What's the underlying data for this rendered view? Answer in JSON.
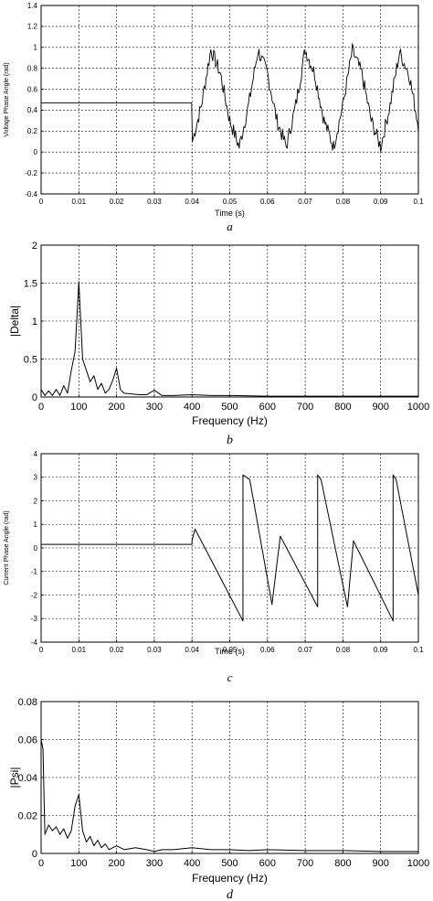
{
  "chart_data": [
    {
      "type": "line",
      "panel_label": "a",
      "xlabel": "Time (s)",
      "ylabel": "Voltage Phase Angle (rad)",
      "xlim": [
        0,
        0.1
      ],
      "ylim": [
        -0.4,
        1.4
      ],
      "grid": true,
      "x_ticks": [
        "0",
        "0.01",
        "0.02",
        "0.03",
        "0.04",
        "0.05",
        "0.06",
        "0.07",
        "0.08",
        "0.09",
        "0.1"
      ],
      "y_ticks": [
        "-0.4",
        "-0.2",
        "0",
        "0.2",
        "0.4",
        "0.6",
        "0.8",
        "1",
        "1.2",
        "1.4"
      ],
      "series": [
        {
          "description": "constant 0.47 rad until 0.04 s, then 100 Hz oscillating phase with noise",
          "x": [
            0,
            0.01,
            0.02,
            0.03,
            0.0399,
            0.0401,
            0.0425,
            0.045,
            0.0475,
            0.05,
            0.0525,
            0.055,
            0.0575,
            0.06,
            0.0625,
            0.065,
            0.0675,
            0.07,
            0.0725,
            0.075,
            0.0775,
            0.08,
            0.0825,
            0.085,
            0.0875,
            0.09,
            0.0925,
            0.095,
            0.0975,
            0.1
          ],
          "y": [
            0.47,
            0.47,
            0.47,
            0.47,
            0.47,
            0.1,
            0.45,
            0.98,
            0.75,
            0.3,
            0.05,
            0.45,
            0.97,
            0.75,
            0.3,
            0.05,
            0.45,
            0.98,
            0.75,
            0.3,
            0.05,
            0.45,
            0.97,
            0.75,
            0.3,
            0.05,
            0.45,
            0.95,
            0.75,
            0.25
          ]
        }
      ]
    },
    {
      "type": "line",
      "panel_label": "b",
      "xlabel": "Frequency (Hz)",
      "ylabel": "|Delta|",
      "xlim": [
        0,
        1000
      ],
      "ylim": [
        0,
        2
      ],
      "grid": true,
      "x_ticks": [
        "0",
        "100",
        "200",
        "300",
        "400",
        "500",
        "600",
        "700",
        "800",
        "900",
        "1000"
      ],
      "y_ticks": [
        "0",
        "0.5",
        "1",
        "1.5",
        "2"
      ],
      "series": [
        {
          "description": "amplitude spectrum of voltage phase angle",
          "x": [
            0,
            10,
            20,
            30,
            40,
            50,
            60,
            70,
            80,
            90,
            100,
            110,
            120,
            130,
            140,
            150,
            160,
            170,
            180,
            190,
            200,
            210,
            220,
            240,
            260,
            280,
            300,
            320,
            350,
            400,
            450,
            500,
            600,
            700,
            800,
            900,
            1000
          ],
          "y": [
            0.1,
            0.02,
            0.08,
            0.02,
            0.1,
            0.02,
            0.15,
            0.05,
            0.35,
            0.6,
            1.52,
            0.5,
            0.35,
            0.2,
            0.28,
            0.1,
            0.18,
            0.05,
            0.1,
            0.22,
            0.38,
            0.1,
            0.05,
            0.04,
            0.03,
            0.03,
            0.09,
            0.02,
            0.02,
            0.03,
            0.02,
            0.02,
            0.01,
            0.01,
            0.01,
            0.01,
            0.01
          ]
        }
      ]
    },
    {
      "type": "line",
      "panel_label": "c",
      "xlabel": "Time (s)",
      "ylabel": "Current Phase Angle (rad)",
      "xlim": [
        0,
        0.1
      ],
      "ylim": [
        -4,
        4
      ],
      "grid": true,
      "x_ticks": [
        "0",
        "0.01",
        "0.02",
        "0.03",
        "0.04",
        "0.05",
        "0.06",
        "0.07",
        "0.08",
        "0.09",
        "0.1"
      ],
      "y_ticks": [
        "-4",
        "-3",
        "-2",
        "-1",
        "0",
        "1",
        "2",
        "3",
        "4"
      ],
      "series": [
        {
          "description": "constant ~0.15 rad until 0.04 s, then sawtooth with wraps at ±pi",
          "x": [
            0,
            0.02,
            0.04,
            0.04,
            0.0408,
            0.0535,
            0.0535,
            0.0553,
            0.0612,
            0.0612,
            0.0634,
            0.0733,
            0.0733,
            0.0742,
            0.0812,
            0.0812,
            0.0828,
            0.0933,
            0.0933,
            0.0941,
            0.1
          ],
          "y": [
            0.15,
            0.15,
            0.15,
            0.3,
            0.8,
            -3.1,
            3.1,
            2.9,
            -2.4,
            -2.4,
            0.5,
            -2.5,
            3.1,
            2.9,
            -2.5,
            -2.5,
            0.3,
            -3.1,
            3.1,
            2.9,
            -2.0
          ]
        }
      ]
    },
    {
      "type": "line",
      "panel_label": "d",
      "xlabel": "Frequency (Hz)",
      "ylabel": "|Psi|",
      "xlim": [
        0,
        1000
      ],
      "ylim": [
        0,
        0.08
      ],
      "grid": true,
      "x_ticks": [
        "0",
        "100",
        "200",
        "300",
        "400",
        "500",
        "600",
        "700",
        "800",
        "900",
        "1000"
      ],
      "y_ticks": [
        "0",
        "0.02",
        "0.04",
        "0.06",
        "0.08"
      ],
      "series": [
        {
          "description": "amplitude spectrum of current phase angle",
          "x": [
            0,
            5,
            10,
            20,
            30,
            40,
            50,
            60,
            70,
            80,
            90,
            100,
            110,
            120,
            130,
            140,
            150,
            160,
            170,
            180,
            200,
            220,
            250,
            280,
            300,
            320,
            350,
            400,
            450,
            500,
            550,
            600,
            700,
            800,
            900,
            1000
          ],
          "y": [
            0.06,
            0.055,
            0.01,
            0.015,
            0.012,
            0.014,
            0.01,
            0.013,
            0.008,
            0.012,
            0.025,
            0.031,
            0.012,
            0.006,
            0.009,
            0.004,
            0.007,
            0.003,
            0.005,
            0.002,
            0.004,
            0.002,
            0.003,
            0.002,
            0.001,
            0.002,
            0.002,
            0.003,
            0.002,
            0.002,
            0.0015,
            0.002,
            0.0015,
            0.0015,
            0.001,
            0.001
          ]
        }
      ]
    }
  ]
}
